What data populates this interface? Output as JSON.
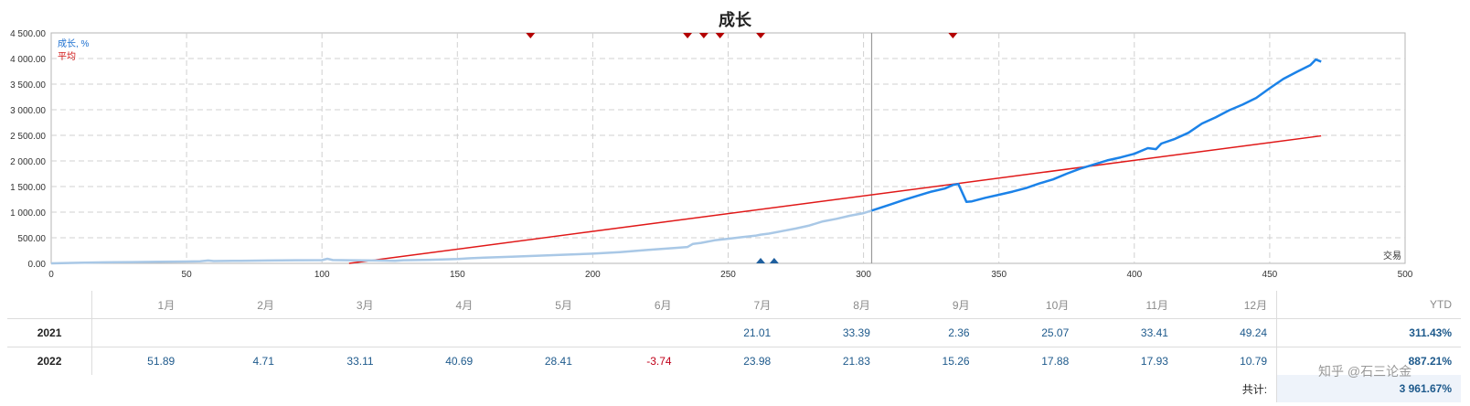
{
  "chart_data": {
    "type": "line",
    "title": "成长",
    "legend": [
      "成长, %",
      "平均"
    ],
    "legend_position": "top-left",
    "corner_label": "交易",
    "xlim": [
      0,
      500
    ],
    "ylim": [
      0,
      4500
    ],
    "x_ticks": [
      0,
      50,
      100,
      150,
      200,
      250,
      300,
      350,
      400,
      450,
      500
    ],
    "y_ticks": [
      0,
      500,
      1000,
      1500,
      2000,
      2500,
      3000,
      3500,
      4000,
      4500
    ],
    "y_tick_labels": [
      "0.00",
      "500.00",
      "1 000.00",
      "1 500.00",
      "2 000.00",
      "2 500.00",
      "3 000.00",
      "3 500.00",
      "4 000.00",
      "4 500.00"
    ],
    "x_tick_labels": [
      "0",
      "50",
      "100",
      "150",
      "200",
      "250",
      "300",
      "350",
      "400",
      "450",
      "500"
    ],
    "grid": true,
    "divider_x": 303,
    "colors": {
      "growth_past": "#a9c8e6",
      "growth": "#1b82e8",
      "average": "#e01818",
      "marker_top": "#b30000",
      "marker_bottom": "#1f5f9e"
    },
    "top_markers_x": [
      177,
      235,
      241,
      247,
      262,
      333
    ],
    "bottom_markers_x": [
      262,
      267
    ],
    "series": [
      {
        "name": "成长, %",
        "x": [
          0,
          10,
          20,
          30,
          40,
          50,
          55,
          58,
          60,
          70,
          80,
          90,
          100,
          102,
          104,
          110,
          120,
          127,
          130,
          140,
          150,
          155,
          160,
          170,
          180,
          190,
          200,
          210,
          220,
          230,
          235,
          237,
          240,
          245,
          250,
          255,
          260,
          262,
          265,
          270,
          275,
          280,
          285,
          290,
          295,
          300,
          303,
          310,
          315,
          320,
          325,
          330,
          333,
          335,
          338,
          340,
          345,
          350,
          355,
          360,
          365,
          370,
          375,
          380,
          385,
          390,
          395,
          400,
          405,
          408,
          410,
          415,
          420,
          425,
          430,
          435,
          440,
          445,
          450,
          455,
          460,
          465,
          467,
          469
        ],
        "y": [
          0,
          10,
          20,
          25,
          30,
          35,
          40,
          55,
          45,
          50,
          55,
          60,
          62,
          90,
          65,
          60,
          55,
          50,
          60,
          70,
          85,
          100,
          110,
          130,
          150,
          170,
          190,
          220,
          260,
          300,
          320,
          380,
          400,
          450,
          480,
          510,
          540,
          560,
          580,
          630,
          680,
          740,
          820,
          870,
          930,
          980,
          1030,
          1150,
          1240,
          1320,
          1400,
          1460,
          1530,
          1550,
          1200,
          1210,
          1280,
          1340,
          1400,
          1470,
          1560,
          1640,
          1750,
          1850,
          1930,
          2010,
          2070,
          2140,
          2250,
          2230,
          2340,
          2430,
          2550,
          2730,
          2850,
          2990,
          3100,
          3230,
          3420,
          3600,
          3740,
          3870,
          3980,
          3940
        ]
      },
      {
        "name": "平均",
        "x": [
          110,
          469
        ],
        "y": [
          0,
          2490
        ]
      }
    ]
  },
  "table": {
    "columns": [
      "1月",
      "2月",
      "3月",
      "4月",
      "5月",
      "6月",
      "7月",
      "8月",
      "9月",
      "10月",
      "11月",
      "12月"
    ],
    "ytd_header": "YTD",
    "rows": [
      {
        "year": "2021",
        "values": [
          "",
          "",
          "",
          "",
          "",
          "",
          "21.01",
          "33.39",
          "2.36",
          "25.07",
          "33.41",
          "49.24"
        ],
        "ytd": "311.43%"
      },
      {
        "year": "2022",
        "values": [
          "51.89",
          "4.71",
          "33.11",
          "40.69",
          "28.41",
          "-3.74",
          "23.98",
          "21.83",
          "15.26",
          "17.88",
          "17.93",
          "10.79"
        ],
        "ytd": "887.21%"
      }
    ],
    "total_label": "共计:",
    "total_value": "3 961.67%"
  },
  "watermark": "知乎 @石三论金"
}
